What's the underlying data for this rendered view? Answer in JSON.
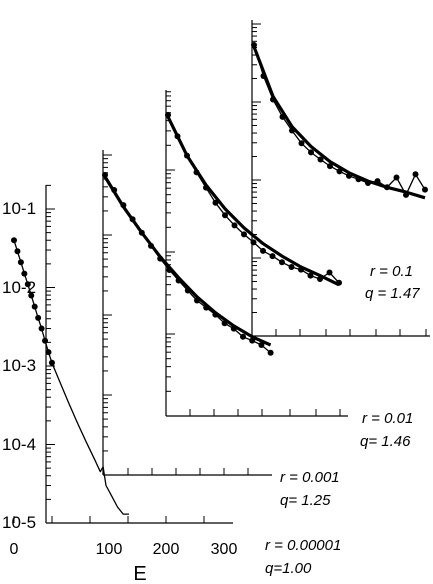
{
  "chart_data": {
    "type": "line",
    "description_axes": "log y axis, offset panels",
    "xlabel": "E",
    "x_ticks": [
      "0",
      "100",
      "200",
      "300"
    ],
    "y_ticks": [
      "10-5",
      "10-4",
      "10-3",
      "10-2",
      "10-1"
    ],
    "y_scale": "log",
    "panels": [
      {
        "r_label": "r = 0.00001",
        "q_label": "q=1.00",
        "series": [
          {
            "name": "",
            "kind": "points",
            "x": [
              0,
              6,
              12,
              18,
              24,
              30,
              36,
              42,
              48,
              54,
              60,
              66
            ],
            "y": [
              0.04,
              0.029,
              0.021,
              0.015,
              0.011,
              0.0079,
              0.0057,
              0.0041,
              0.003,
              0.0021,
              0.0015,
              0.0011
            ]
          },
          {
            "name": "",
            "kind": "line",
            "x": [
              66,
              80,
              95,
              110,
              125,
              140,
              150,
              155,
              160,
              170,
              180,
              190,
              200
            ],
            "y": [
              0.0011,
              0.00062,
              0.00034,
              0.00019,
              0.00011,
              6.5e-05,
              4.5e-05,
              5.2e-05,
              3e-05,
              2.2e-05,
              1.6e-05,
              1.3e-05,
              1.3e-05
            ]
          }
        ]
      },
      {
        "r_label": "r = 0.001",
        "q_label": "q= 1.25",
        "series": [
          {
            "name": "",
            "kind": "points",
            "x": [
              0,
              10,
              20,
              30,
              40,
              50,
              60,
              70,
              80,
              90,
              100,
              110,
              120,
              130,
              140,
              150,
              160,
              170,
              180
            ],
            "y": [
              1.0,
              0.65,
              0.42,
              0.28,
              0.19,
              0.13,
              0.09,
              0.065,
              0.048,
              0.036,
              0.027,
              0.022,
              0.018,
              0.014,
              0.012,
              0.0095,
              0.0085,
              0.0075,
              0.006
            ]
          },
          {
            "name": "",
            "kind": "fit",
            "x": [
              0,
              20,
              40,
              60,
              80,
              100,
              120,
              140,
              160,
              180
            ],
            "y": [
              0.95,
              0.4,
              0.19,
              0.095,
              0.052,
              0.03,
              0.019,
              0.013,
              0.0095,
              0.0075
            ]
          }
        ]
      },
      {
        "r_label": "r = 0.01",
        "q_label": "q= 1.46",
        "series": [
          {
            "name": "",
            "kind": "points",
            "x": [
              0,
              10,
              20,
              30,
              40,
              50,
              60,
              70,
              80,
              90,
              100,
              110,
              120,
              130,
              140,
              150,
              160,
              170,
              180
            ],
            "y": [
              1.0,
              0.55,
              0.32,
              0.2,
              0.13,
              0.085,
              0.06,
              0.045,
              0.035,
              0.028,
              0.022,
              0.019,
              0.016,
              0.014,
              0.013,
              0.011,
              0.01,
              0.012,
              0.009
            ]
          },
          {
            "name": "",
            "kind": "fit",
            "x": [
              0,
              20,
              40,
              60,
              80,
              100,
              120,
              140,
              160,
              180
            ],
            "y": [
              0.95,
              0.32,
              0.14,
              0.072,
              0.042,
              0.027,
              0.019,
              0.014,
              0.011,
              0.0085
            ]
          }
        ]
      },
      {
        "r_label": "r = 0.1",
        "q_label": "q = 1.47",
        "series": [
          {
            "name": "",
            "kind": "points",
            "x": [
              0,
              10,
              20,
              30,
              40,
              50,
              60,
              70,
              80,
              90,
              100,
              110,
              120,
              130,
              140,
              150,
              160,
              170,
              180
            ],
            "y": [
              1.0,
              0.4,
              0.2,
              0.12,
              0.08,
              0.055,
              0.042,
              0.034,
              0.028,
              0.024,
              0.021,
              0.019,
              0.017,
              0.018,
              0.015,
              0.02,
              0.012,
              0.022,
              0.014
            ]
          },
          {
            "name": "",
            "kind": "fit",
            "x": [
              0,
              20,
              40,
              60,
              80,
              100,
              120,
              140,
              160,
              180
            ],
            "y": [
              0.95,
              0.22,
              0.09,
              0.05,
              0.032,
              0.023,
              0.018,
              0.015,
              0.013,
              0.011
            ]
          }
        ]
      }
    ]
  }
}
